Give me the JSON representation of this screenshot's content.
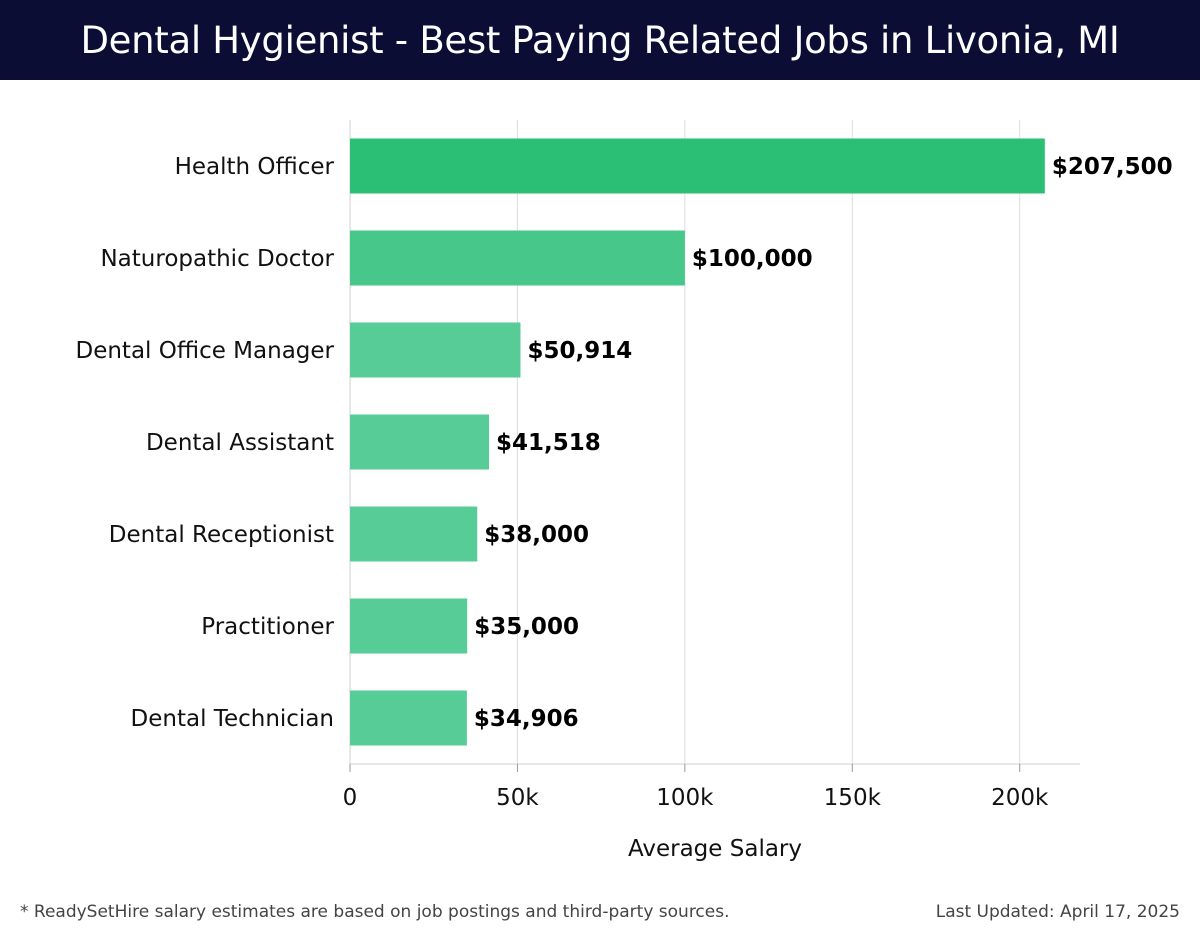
{
  "header": {
    "title": "Dental Hygienist - Best Paying Related Jobs in Livonia, MI"
  },
  "colors": {
    "header_bg": "#0b0d35",
    "bar_top": "#2bbf76",
    "bar_second": "#48c78a",
    "bar_rest": "#57cc96",
    "grid": "#dddddd"
  },
  "chart_data": {
    "type": "bar",
    "orientation": "horizontal",
    "categories": [
      "Health Officer",
      "Naturopathic Doctor",
      "Dental Office Manager",
      "Dental Assistant",
      "Dental Receptionist",
      "Practitioner",
      "Dental Technician"
    ],
    "values": [
      207500,
      100000,
      50914,
      41518,
      38000,
      35000,
      34906
    ],
    "value_labels": [
      "$207,500",
      "$100,000",
      "$50,914",
      "$41,518",
      "$38,000",
      "$35,000",
      "$34,906"
    ],
    "xlabel": "Average Salary",
    "xlim": [
      0,
      218000
    ],
    "xticks": [
      0,
      50000,
      100000,
      150000,
      200000
    ],
    "xtick_labels": [
      "0",
      "50k",
      "100k",
      "150k",
      "200k"
    ],
    "grid": "vertical"
  },
  "footer": {
    "note": "* ReadySetHire salary estimates are based on job postings and third-party sources.",
    "updated": "Last Updated: April 17, 2025"
  }
}
